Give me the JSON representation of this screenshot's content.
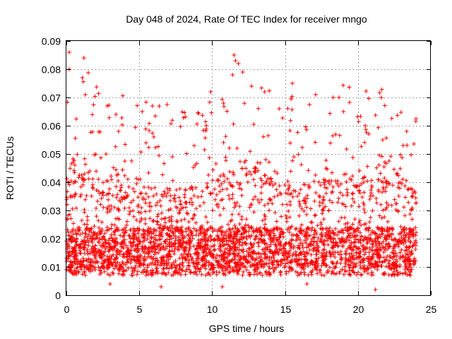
{
  "chart_data": {
    "type": "scatter",
    "title": "Day 048 of 2024, Rate Of TEC Index for receiver mngo",
    "xlabel": "GPS time / hours",
    "ylabel": "ROTI / TECUs",
    "xlim": [
      0,
      25
    ],
    "ylim": [
      0,
      0.09
    ],
    "grid": true,
    "marker": "+",
    "color": "#ff0000",
    "x_ticks": [
      "0",
      "5",
      "10",
      "15",
      "20",
      "25"
    ],
    "x_tick_values": [
      0,
      5,
      10,
      15,
      20,
      25
    ],
    "y_ticks": [
      "0",
      "0.01",
      "0.02",
      "0.03",
      "0.04",
      "0.05",
      "0.06",
      "0.07",
      "0.08",
      "0.09"
    ],
    "y_tick_values": [
      0,
      0.01,
      0.02,
      0.03,
      0.04,
      0.05,
      0.06,
      0.07,
      0.08,
      0.09
    ],
    "series": [
      {
        "name": "ROTI",
        "envelope_note": "dense scatter across 0-24 h; values mostly 0.005-0.04 TECU/min",
        "peaks": [
          {
            "x": 0.2,
            "y": 0.086
          },
          {
            "x": 0.2,
            "y": 0.08
          },
          {
            "x": 1.2,
            "y": 0.084
          },
          {
            "x": 1.1,
            "y": 0.077
          },
          {
            "x": 1.3,
            "y": 0.071
          },
          {
            "x": 2.8,
            "y": 0.067
          },
          {
            "x": 3.4,
            "y": 0.064
          },
          {
            "x": 5.2,
            "y": 0.065
          },
          {
            "x": 5.9,
            "y": 0.067
          },
          {
            "x": 9.6,
            "y": 0.06
          },
          {
            "x": 9.9,
            "y": 0.072
          },
          {
            "x": 11.5,
            "y": 0.085
          },
          {
            "x": 11.6,
            "y": 0.083
          },
          {
            "x": 11.8,
            "y": 0.082
          },
          {
            "x": 11.4,
            "y": 0.078
          },
          {
            "x": 12.1,
            "y": 0.079
          },
          {
            "x": 12.7,
            "y": 0.074
          },
          {
            "x": 13.6,
            "y": 0.072
          },
          {
            "x": 14.6,
            "y": 0.066
          },
          {
            "x": 15.5,
            "y": 0.075
          },
          {
            "x": 17.1,
            "y": 0.071
          },
          {
            "x": 18.3,
            "y": 0.07
          },
          {
            "x": 18.7,
            "y": 0.07
          },
          {
            "x": 19.0,
            "y": 0.065
          },
          {
            "x": 20.5,
            "y": 0.06
          },
          {
            "x": 21.7,
            "y": 0.055
          },
          {
            "x": 23.1,
            "y": 0.053
          }
        ],
        "lows": [
          {
            "x": 6.5,
            "y": 0.003
          },
          {
            "x": 10.7,
            "y": 0.003
          },
          {
            "x": 21.2,
            "y": 0.002
          },
          {
            "x": 16.5,
            "y": 0.004
          },
          {
            "x": 3.0,
            "y": 0.004
          }
        ]
      }
    ]
  }
}
